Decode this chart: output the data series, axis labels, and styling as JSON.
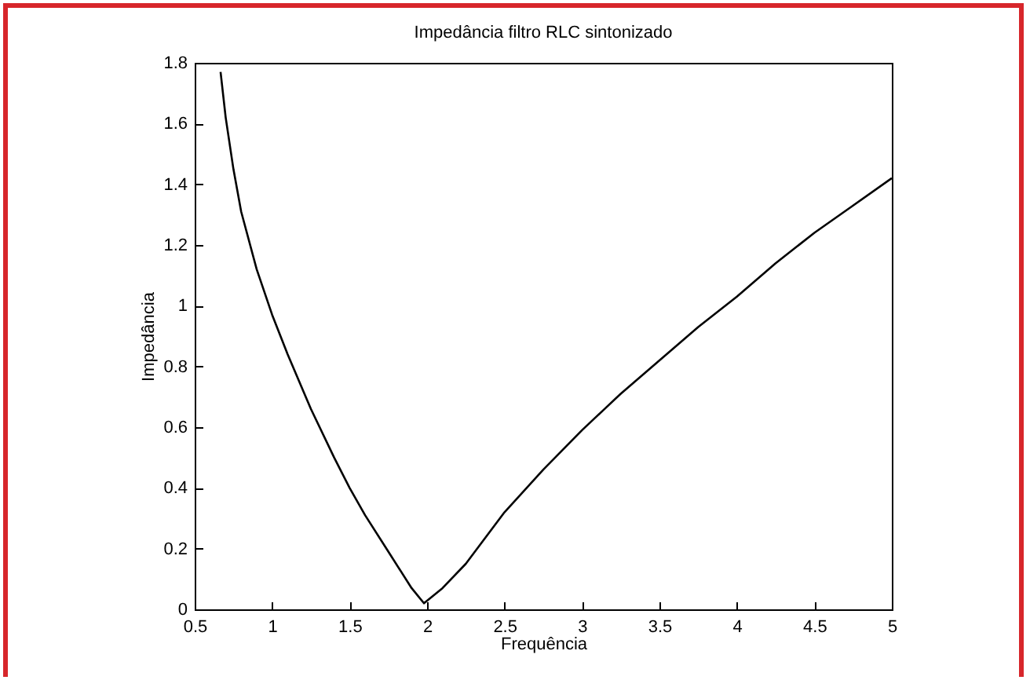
{
  "chart_data": {
    "type": "line",
    "title": "Impedância filtro RLC sintonizado",
    "xlabel": "Frequência",
    "ylabel": "Impedância",
    "x": [
      0.667,
      0.7,
      0.75,
      0.8,
      0.9,
      1.0,
      1.1,
      1.25,
      1.4,
      1.5,
      1.6,
      1.75,
      1.9,
      1.98,
      2.1,
      2.25,
      2.5,
      2.75,
      3,
      3.25,
      3.5,
      3.75,
      4,
      4.25,
      4.5,
      4.75,
      5
    ],
    "series": [
      {
        "color": "#000000",
        "values": [
          1.77,
          1.62,
          1.45,
          1.31,
          1.12,
          0.97,
          0.84,
          0.66,
          0.5,
          0.4,
          0.31,
          0.19,
          0.07,
          0.02,
          0.07,
          0.15,
          0.32,
          0.46,
          0.59,
          0.71,
          0.82,
          0.93,
          1.03,
          1.14,
          1.24,
          1.33,
          1.42
        ]
      }
    ],
    "xlim": [
      0.5,
      5
    ],
    "ylim": [
      0,
      1.8
    ],
    "xticks": [
      0.5,
      1,
      1.5,
      2,
      2.5,
      3,
      3.5,
      4,
      4.5,
      5
    ],
    "yticks": [
      0,
      0.2,
      0.4,
      0.6,
      0.8,
      1,
      1.2,
      1.4,
      1.6,
      1.8
    ],
    "grid": false,
    "marker": "none",
    "line_style": "solid"
  }
}
